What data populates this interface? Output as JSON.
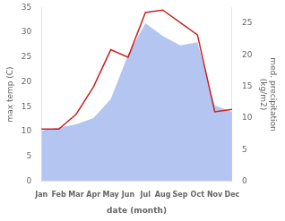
{
  "chart_data": {
    "type": "line",
    "xlabel": "date (month)",
    "ylabel": "max temp (C)",
    "y2label": "med. precipitation\n(kg/m2)",
    "categories": [
      "Jan",
      "Feb",
      "Mar",
      "Apr",
      "May",
      "Jun",
      "Jul",
      "Aug",
      "Sep",
      "Oct",
      "Nov",
      "Dec"
    ],
    "series": [
      {
        "type": "area",
        "color": "#b3c5f0",
        "axis": "y2",
        "values": [
          8.0,
          8.5,
          9.0,
          10.0,
          13.0,
          20.0,
          25.0,
          23.0,
          21.5,
          22.0,
          12.0,
          11.0
        ]
      },
      {
        "type": "line",
        "color": "#cc2222",
        "values": [
          10.5,
          10.5,
          13.5,
          19.0,
          26.5,
          25.0,
          34.0,
          34.5,
          32.0,
          29.5,
          14.0,
          14.5
        ]
      }
    ],
    "ylim": [
      0,
      35
    ],
    "yticks": [
      0,
      5,
      10,
      15,
      20,
      25,
      30,
      35
    ],
    "y2lim": [
      0,
      27.5
    ],
    "y2ticks": [
      0,
      5,
      10,
      15,
      20,
      25
    ],
    "grid": false
  }
}
